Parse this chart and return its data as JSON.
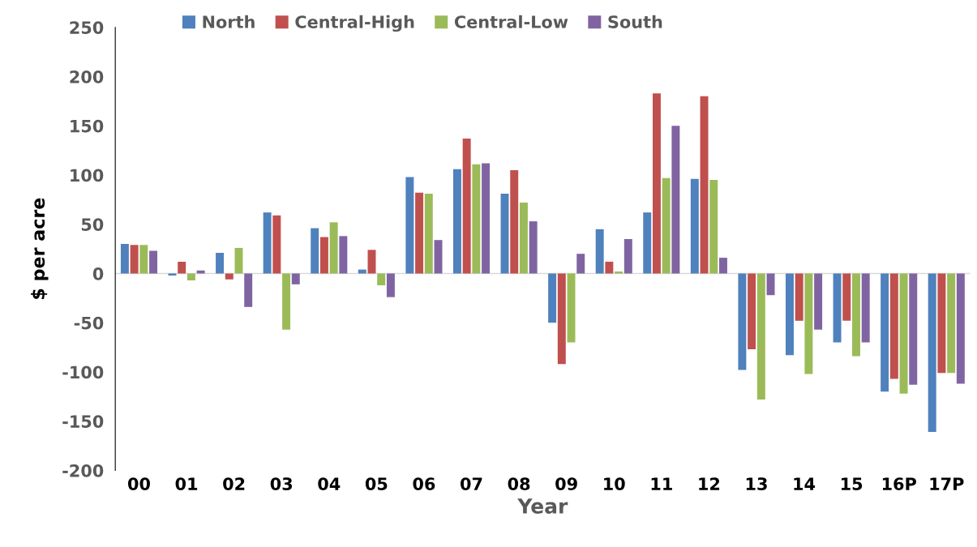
{
  "chart_data": {
    "type": "bar",
    "xlabel": "Year",
    "ylabel": "$ per acre",
    "categories": [
      "00",
      "01",
      "02",
      "03",
      "04",
      "05",
      "06",
      "07",
      "08",
      "09",
      "10",
      "11",
      "12",
      "13",
      "14",
      "15",
      "16P",
      "17P"
    ],
    "series": [
      {
        "name": "North",
        "color": "#4f81bd",
        "values": [
          30,
          -2,
          21,
          62,
          46,
          4,
          98,
          106,
          81,
          -50,
          45,
          62,
          96,
          -98,
          -83,
          -70,
          -120,
          -161
        ]
      },
      {
        "name": "Central-High",
        "color": "#c0504d",
        "values": [
          29,
          12,
          -6,
          59,
          37,
          24,
          82,
          137,
          105,
          -92,
          12,
          183,
          180,
          -77,
          -48,
          -48,
          -107,
          -101
        ]
      },
      {
        "name": "Central-Low",
        "color": "#9bbb59",
        "values": [
          29,
          -7,
          26,
          -57,
          52,
          -12,
          81,
          111,
          72,
          -70,
          2,
          97,
          95,
          -128,
          -102,
          -84,
          -122,
          -101
        ]
      },
      {
        "name": "South",
        "color": "#8064a2",
        "values": [
          23,
          3,
          -34,
          -11,
          38,
          -24,
          34,
          112,
          53,
          20,
          35,
          150,
          16,
          -22,
          -57,
          -70,
          -113,
          -112
        ]
      }
    ],
    "ylim": [
      -200,
      250
    ],
    "yticks": [
      -200,
      -150,
      -100,
      -50,
      0,
      50,
      100,
      150,
      200,
      250
    ],
    "ref_lines": [
      {
        "axis": "y",
        "value": 0,
        "color": "#d9d9d9"
      }
    ],
    "grid": false,
    "legend": "top"
  }
}
